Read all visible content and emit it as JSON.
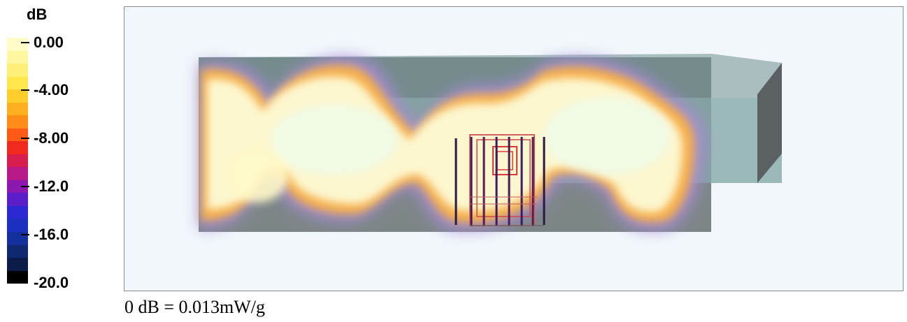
{
  "legend": {
    "unit": "dB",
    "ticks": [
      "0.00",
      "-4.00",
      "-8.00",
      "-12.0",
      "-16.0",
      "-20.0"
    ],
    "colors": [
      "#fffcc8",
      "#fff6a0",
      "#ffef78",
      "#ffe64c",
      "#ffce2a",
      "#ffb020",
      "#ff8c18",
      "#ff5a16",
      "#f02a1c",
      "#d81c4e",
      "#b81a88",
      "#8c18b0",
      "#5c1ec8",
      "#2c28d2",
      "#1c30c0",
      "#14309c",
      "#102870",
      "#0c1c48",
      "#000000"
    ]
  },
  "caption": "0 dB = 0.013mW/g"
}
